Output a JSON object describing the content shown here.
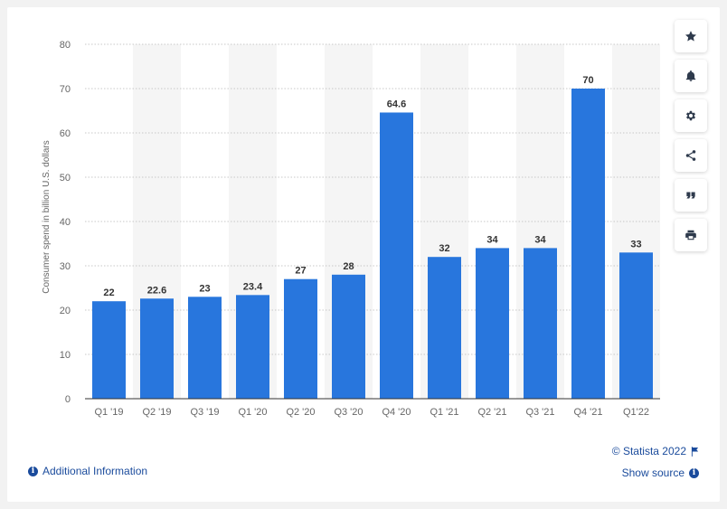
{
  "chart_data": {
    "type": "bar",
    "categories": [
      "Q1 '19",
      "Q2 '19",
      "Q3 '19",
      "Q1 '20",
      "Q2 '20",
      "Q3 '20",
      "Q4 '20",
      "Q1 '21",
      "Q2 '21",
      "Q3 '21",
      "Q4 '21",
      "Q1'22"
    ],
    "values": [
      22,
      22.6,
      23,
      23.4,
      27,
      28,
      64.6,
      32,
      34,
      34,
      70,
      33
    ],
    "value_labels": [
      "22",
      "22.6",
      "23",
      "23.4",
      "27",
      "28",
      "64.6",
      "32",
      "34",
      "34",
      "70",
      "33"
    ],
    "ylabel": "Consumer spend in billion U.S. dollars",
    "xlabel": "",
    "ylim": [
      0,
      80
    ],
    "yticks": [
      0,
      10,
      20,
      30,
      40,
      50,
      60,
      70,
      80
    ],
    "grid": true,
    "bar_color": "#2876dd"
  },
  "toolbar": {
    "icons": [
      "star-icon",
      "bell-icon",
      "gear-icon",
      "share-icon",
      "quote-icon",
      "print-icon"
    ]
  },
  "footer": {
    "additional_info": "Additional Information",
    "copyright": "© Statista 2022",
    "show_source": "Show source"
  },
  "colors": {
    "link": "#1a4b9c",
    "band": "#f5f5f5"
  }
}
